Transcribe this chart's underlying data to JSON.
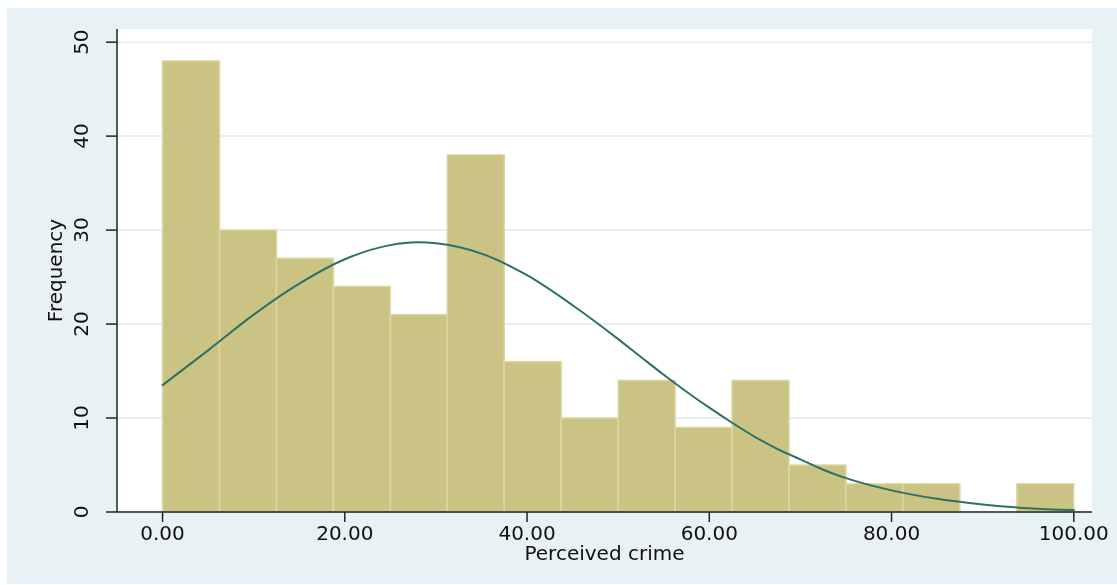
{
  "chart_data": {
    "type": "histogram",
    "xlabel": "Perceived crime",
    "ylabel": "Frequency",
    "bins": [
      0,
      6.25,
      12.5,
      18.75,
      25,
      31.25,
      37.5,
      43.75,
      50,
      56.25,
      62.5,
      68.75,
      75,
      81.25,
      87.5,
      93.75,
      100
    ],
    "series": [
      {
        "color": "#cac383",
        "values": [
          48,
          30,
          27,
          24,
          21,
          38,
          16,
          10,
          14,
          9,
          14,
          5,
          3,
          3,
          0,
          3
        ]
      },
      {
        "type": "line",
        "color": "#2d7067",
        "x": [
          0,
          5,
          10,
          15,
          20,
          25,
          28,
          30,
          35,
          40,
          45,
          50,
          52.5,
          55,
          57.5,
          60,
          62.5,
          65,
          67.5,
          70,
          72.5,
          75,
          80,
          85,
          90,
          95,
          100
        ],
        "values": [
          13.5,
          17.2,
          21.0,
          24.3,
          26.9,
          28.4,
          28.7,
          28.6,
          27.5,
          25.2,
          22.0,
          18.4,
          16.5,
          14.6,
          12.8,
          11.1,
          9.5,
          8.0,
          6.7,
          5.6,
          4.5,
          3.6,
          2.3,
          1.4,
          0.8,
          0.4,
          0.2
        ]
      }
    ],
    "xlim": [
      -5,
      102
    ],
    "ylim": [
      0,
      51.4
    ],
    "xticks": [
      {
        "value": 0,
        "label": "0.00"
      },
      {
        "value": 20,
        "label": "20.00"
      },
      {
        "value": 40,
        "label": "40.00"
      },
      {
        "value": 60,
        "label": "60.00"
      },
      {
        "value": 80,
        "label": "80.00"
      },
      {
        "value": 100,
        "label": "100.00"
      }
    ],
    "yticks": [
      0,
      10,
      20,
      30,
      40,
      50
    ],
    "grid": "y"
  }
}
